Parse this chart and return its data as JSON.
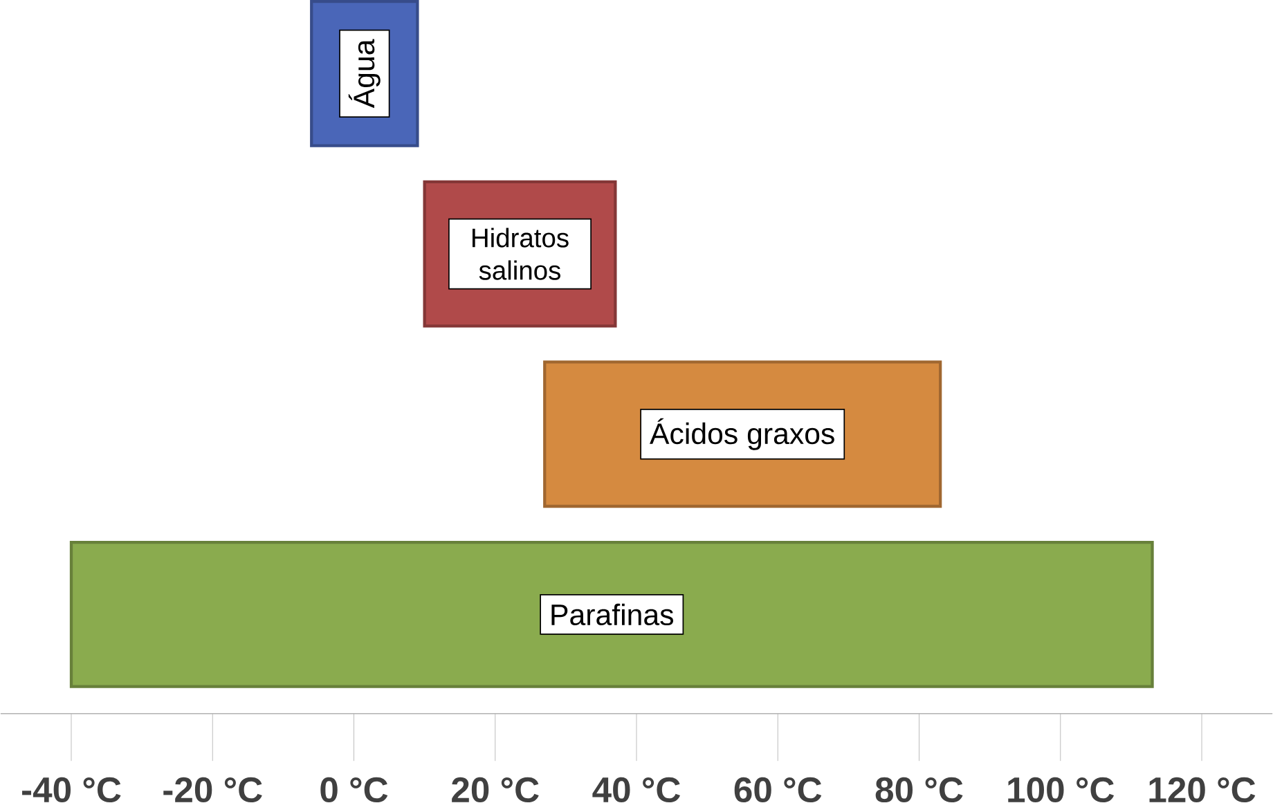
{
  "chart_data": {
    "type": "bar",
    "orientation": "horizontal",
    "categories": [
      "Água",
      "Hidratos salinos",
      "Ácidos graxos",
      "Parafinas"
    ],
    "base": [
      -6,
      10,
      27,
      -40
    ],
    "values": [
      15,
      27,
      56,
      153
    ],
    "colors": [
      "#4a66b8",
      "#b04a4a",
      "#d58a40",
      "#8aab4e"
    ],
    "xlim": [
      -50,
      130
    ],
    "xticks": [
      {
        "value": -40,
        "label": "-40 °C"
      },
      {
        "value": -20,
        "label": "-20 °C"
      },
      {
        "value": 0,
        "label": "0 °C"
      },
      {
        "value": 20,
        "label": "20 °C"
      },
      {
        "value": 40,
        "label": "40 °C"
      },
      {
        "value": 60,
        "label": "60 °C"
      },
      {
        "value": 80,
        "label": "80 °C"
      },
      {
        "value": 100,
        "label": "100 °C"
      },
      {
        "value": 120,
        "label": "120 °C"
      }
    ]
  }
}
